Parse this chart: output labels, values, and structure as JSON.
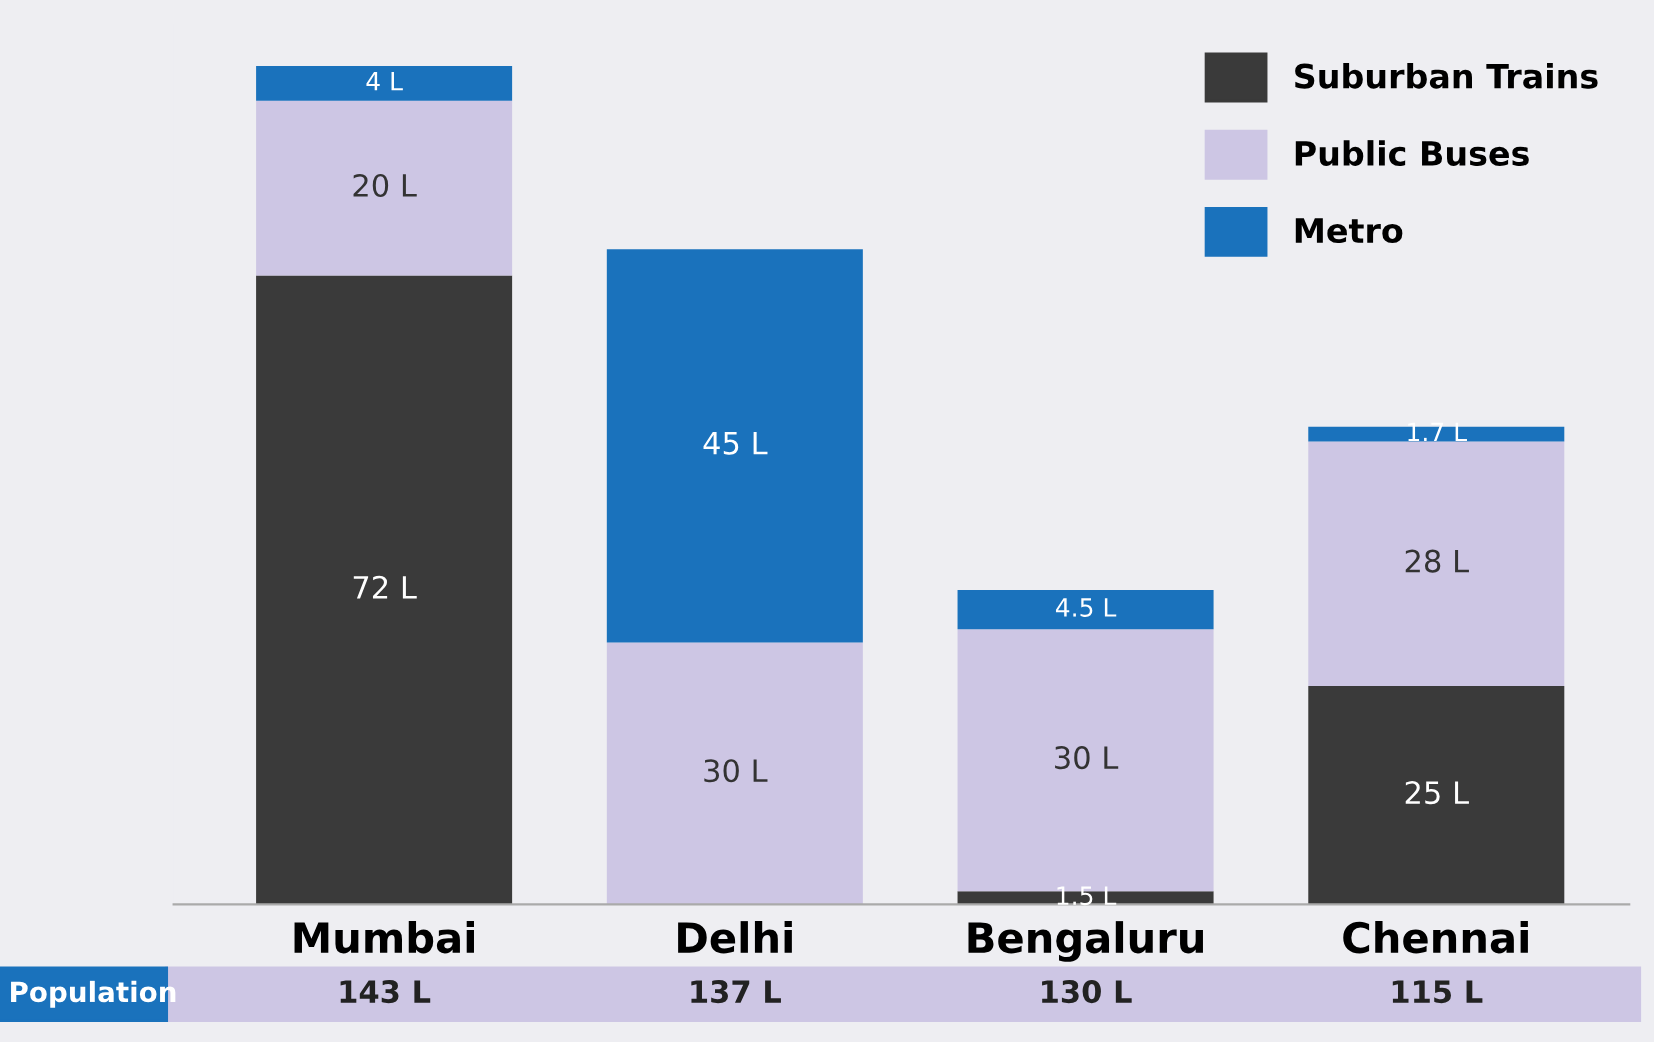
{
  "chart_data": {
    "type": "bar",
    "stacked": true,
    "categories": [
      "Mumbai",
      "Delhi",
      "Bengaluru",
      "Chennai"
    ],
    "series": [
      {
        "name": "Suburban Trains",
        "color": "#3a3a3a",
        "values": [
          72,
          null,
          1.5,
          25
        ],
        "value_labels": [
          "72 L",
          null,
          "1.5 L",
          "25 L"
        ]
      },
      {
        "name": "Public Buses",
        "color": "#cdc6e4",
        "values": [
          20,
          30,
          30,
          28
        ],
        "value_labels": [
          "20 L",
          "30 L",
          "30 L",
          "28 L"
        ]
      },
      {
        "name": "Metro",
        "color": "#1a72bc",
        "values": [
          4,
          45,
          4.5,
          1.7
        ],
        "value_labels": [
          "4 L",
          "45 L",
          "4.5 L",
          "1.7 L"
        ]
      }
    ],
    "legend": "top right",
    "annotations": [
      "Population",
      "143 L",
      "137 L",
      "130 L",
      "115 L"
    ]
  }
}
